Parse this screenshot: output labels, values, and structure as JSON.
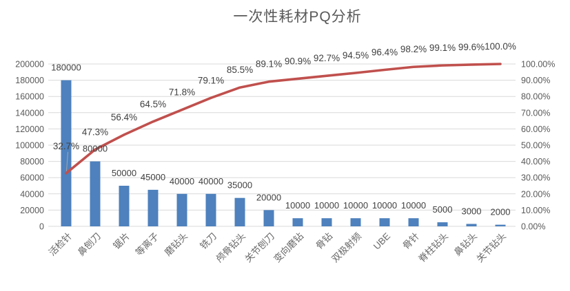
{
  "colors": {
    "bar": "#4E81BD",
    "line": "#C0504D",
    "grid": "#D9D9D9",
    "axis_text": "#595959",
    "data_label": "#404040",
    "category_text": "#696969",
    "title_text": "#595959",
    "leader": "#A6A6A6",
    "background": "#FFFFFF"
  },
  "chart_data": {
    "type": "pareto (bar + cumulative percent line)",
    "title": "一次性耗材PQ分析",
    "legend": "none",
    "grid": true,
    "categories": [
      "活检针",
      "鼻刨刀",
      "锯片",
      "等离子",
      "磨钻头",
      "铣刀",
      "颅骨钻头",
      "关节刨刀",
      "变向磨钻",
      "骨钻",
      "双极射频",
      "UBE",
      "骨针",
      "脊柱钻头",
      "鼻钻头",
      "关节钻头"
    ],
    "values": [
      180000,
      80000,
      50000,
      45000,
      40000,
      40000,
      35000,
      20000,
      10000,
      10000,
      10000,
      10000,
      10000,
      5000,
      3000,
      2000
    ],
    "value_labels": [
      "180000",
      "80000",
      "50000",
      "45000",
      "40000",
      "40000",
      "35000",
      "20000",
      "10000",
      "10000",
      "10000",
      "10000",
      "10000",
      "5000",
      "3000",
      "2000"
    ],
    "cumulative_percent": [
      32.7,
      47.3,
      56.4,
      64.5,
      71.8,
      79.1,
      85.5,
      89.1,
      90.9,
      92.7,
      94.5,
      96.4,
      98.2,
      99.1,
      99.6,
      100.0
    ],
    "cumulative_percent_labels": [
      "32.7%",
      "47.3%",
      "56.4%",
      "64.5%",
      "71.8%",
      "79.1%",
      "85.5%",
      "89.1%",
      "90.9%",
      "92.7%",
      "94.5%",
      "96.4%",
      "98.2%",
      "99.1%",
      "99.6%",
      "100.0%"
    ],
    "left_axis": {
      "min": 0,
      "max": 200000,
      "step": 20000,
      "tick_labels": [
        "0",
        "20000",
        "40000",
        "60000",
        "80000",
        "100000",
        "120000",
        "140000",
        "160000",
        "180000",
        "200000"
      ]
    },
    "right_axis": {
      "min": 0,
      "max": 100,
      "step": 10,
      "tick_labels": [
        "0.00%",
        "10.00%",
        "20.00%",
        "30.00%",
        "40.00%",
        "50.00%",
        "60.00%",
        "70.00%",
        "80.00%",
        "90.00%",
        "100.00%"
      ]
    }
  }
}
